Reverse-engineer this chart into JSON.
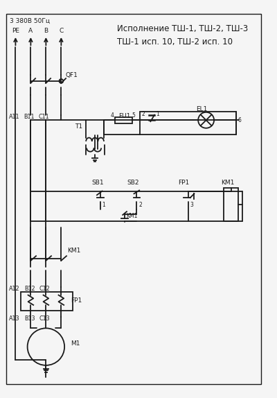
{
  "title_line1": "Исполнение ТШ-1, ТШ-2, ТШ-3",
  "title_line2": "ТШ-1 исп. 10, ТШ-2 исп. 10",
  "supply_label": "3 380В 50Гц",
  "bg_color": "#f5f5f5",
  "line_color": "#1a1a1a",
  "lw": 1.3,
  "fig_w": 4.0,
  "fig_h": 5.74
}
